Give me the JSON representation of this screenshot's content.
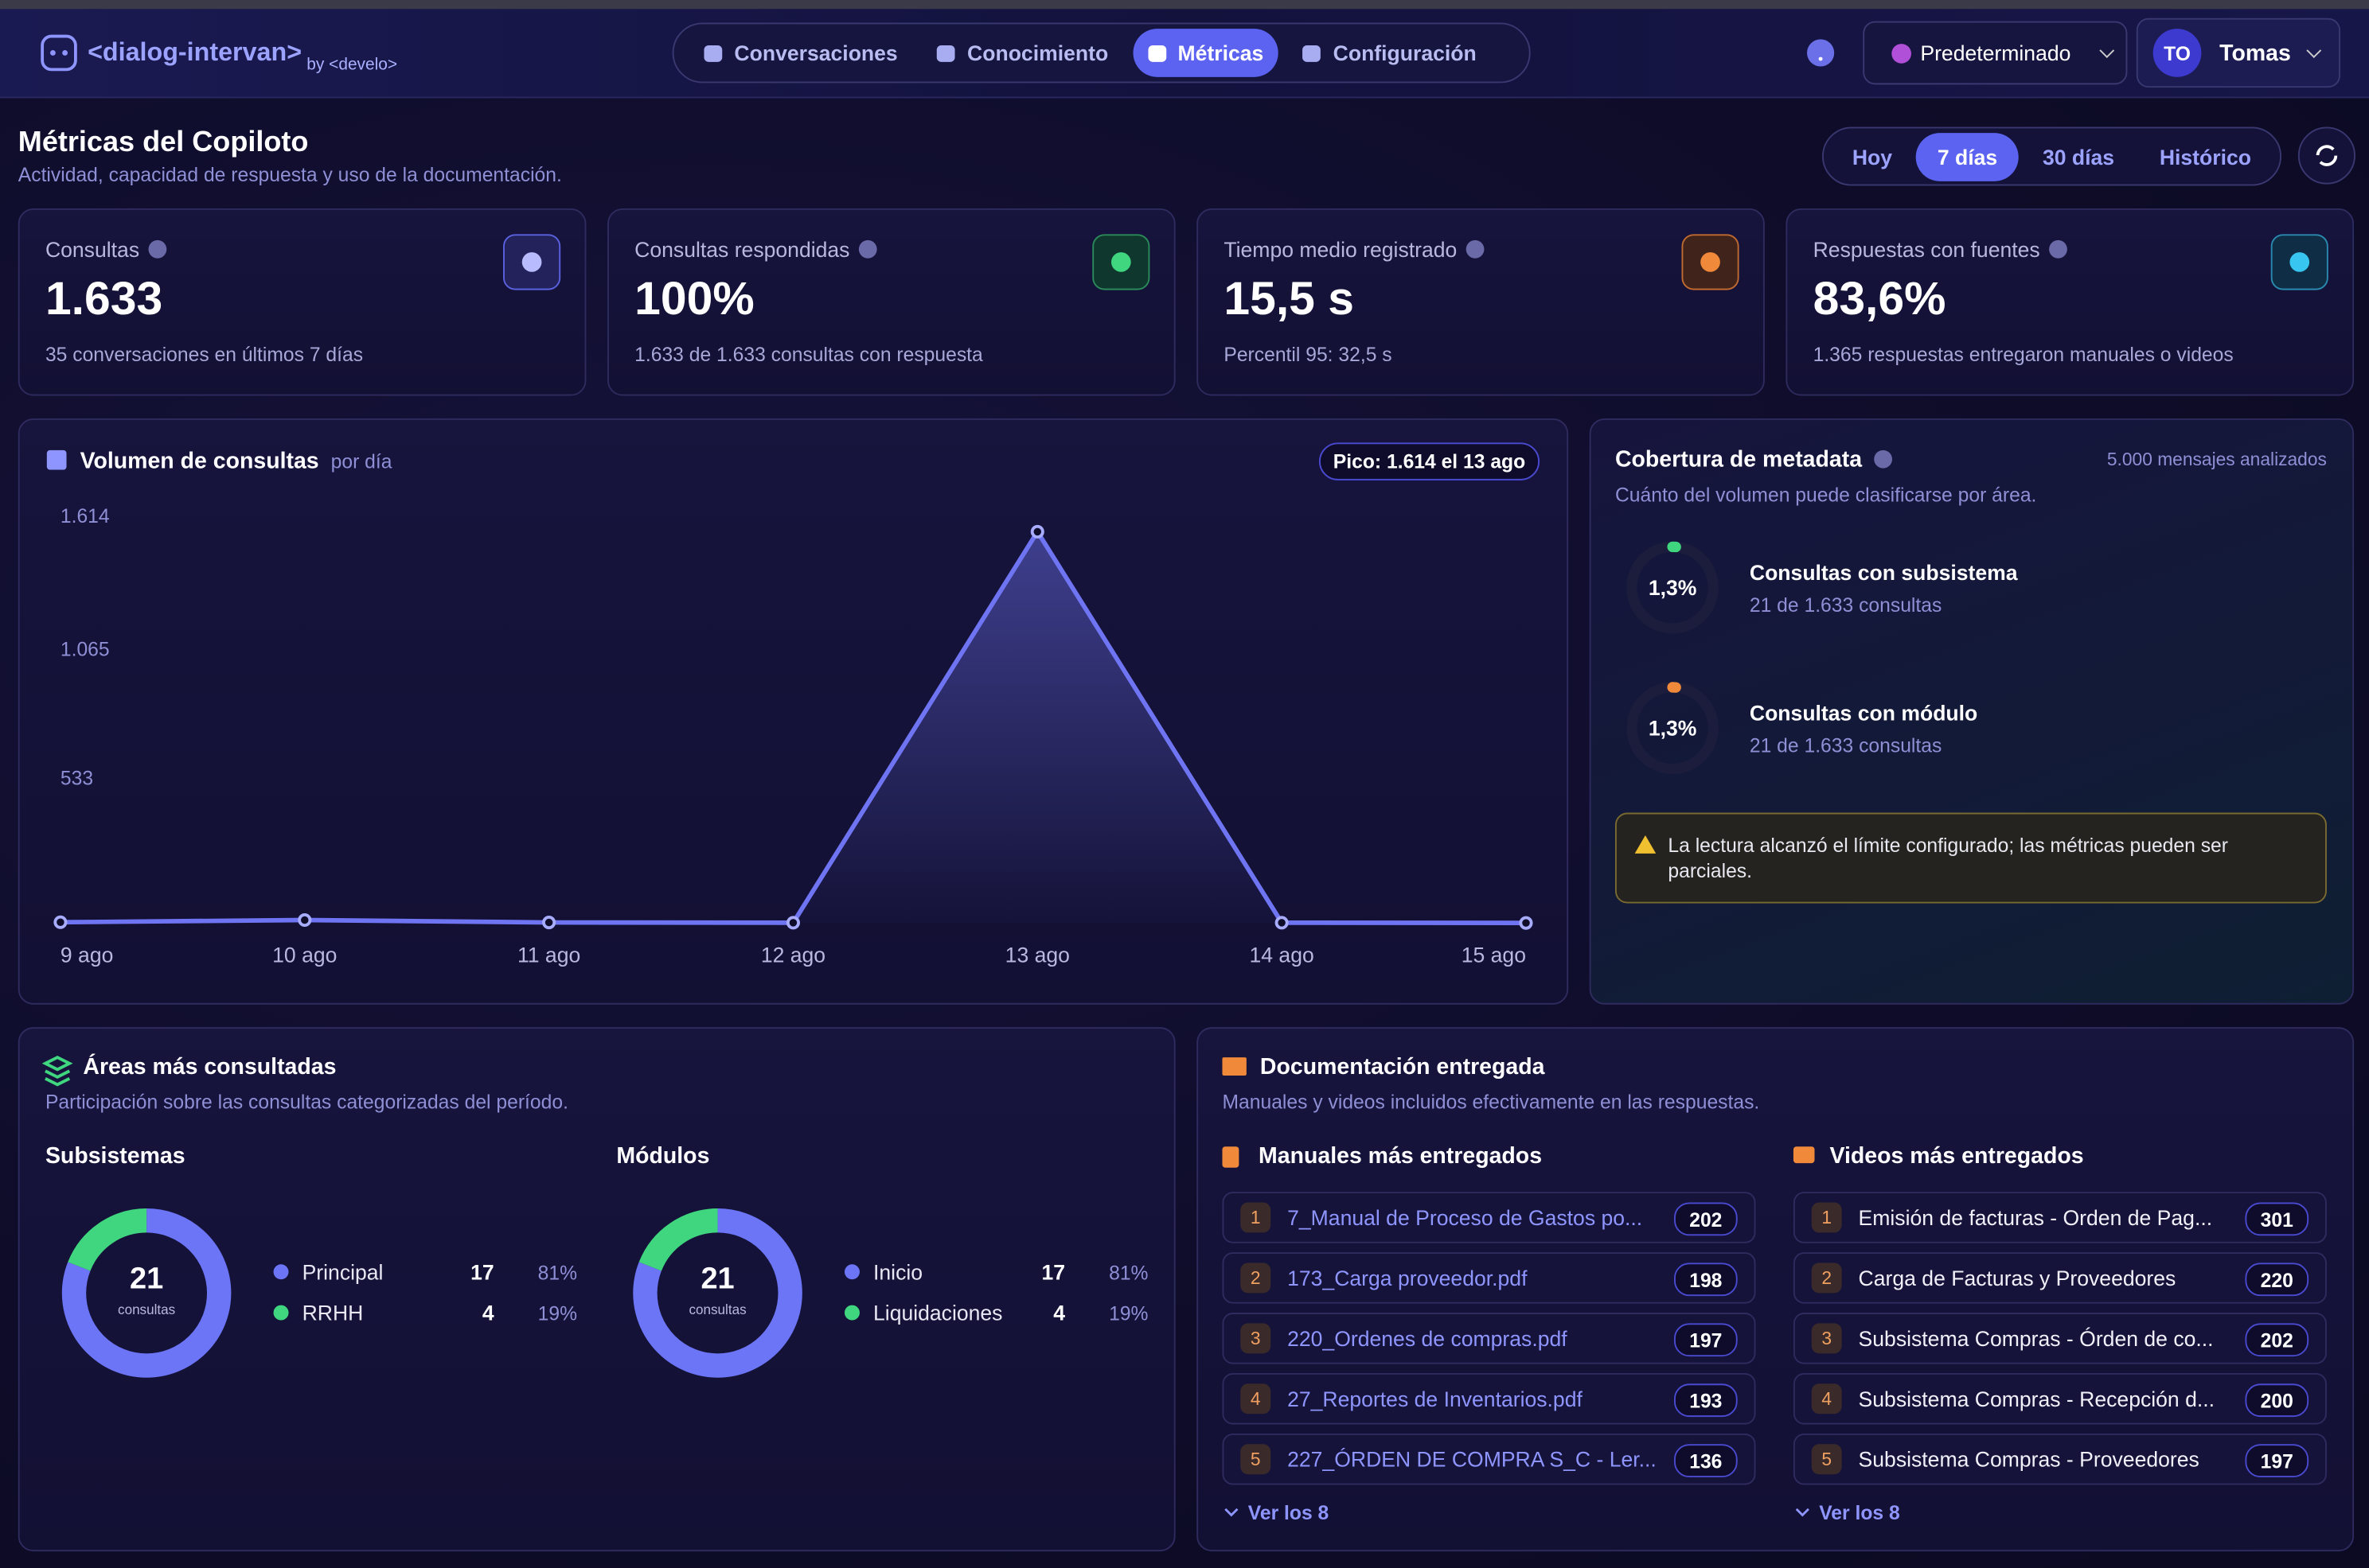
{
  "header": {
    "logo": "<dialog-intervan>",
    "by": "by <develo>",
    "nav": [
      "Conversaciones",
      "Conocimiento",
      "Métricas",
      "Configuración"
    ],
    "nav_active": 2,
    "profile": "Predeterminado",
    "user_initials": "TO",
    "user": "Tomas"
  },
  "page": {
    "title": "Métricas del Copiloto",
    "subtitle": "Actividad, capacidad de respuesta y uso de la documentación.",
    "ranges": [
      "Hoy",
      "7 días",
      "30 días",
      "Histórico"
    ],
    "range_active": 1
  },
  "kpis": [
    {
      "label": "Consultas",
      "value": "1.633",
      "note": "35 conversaciones en últimos 7 días"
    },
    {
      "label": "Consultas respondidas",
      "value": "100%",
      "note": "1.633 de 1.633 consultas con respuesta"
    },
    {
      "label": "Tiempo medio registrado",
      "value": "15,5 s",
      "note": "Percentil 95: 32,5 s"
    },
    {
      "label": "Respuestas con fuentes",
      "value": "83,6%",
      "note": "1.365 respuestas entregaron manuales o videos"
    }
  ],
  "chart_data": {
    "type": "line",
    "title": "Volumen de consultas",
    "subtitle": "por día",
    "badge": "Pico: 1.614 el 13 ago",
    "categories": [
      "9 ago",
      "10 ago",
      "11 ago",
      "12 ago",
      "13 ago",
      "14 ago",
      "15 ago"
    ],
    "values": [
      3,
      12,
      2,
      1,
      1614,
      1,
      0
    ],
    "color": "#6f74f2",
    "ylim": [
      0,
      1614
    ],
    "yticks": [
      {
        "value": 533,
        "label": "533"
      },
      {
        "value": 1065,
        "label": "1.065"
      },
      {
        "value": 1614,
        "label": "1.614"
      }
    ]
  },
  "coverage": {
    "title": "Cobertura de metadata",
    "count_note": "5.000 mensajes analizados",
    "subtitle": "Cuánto del volumen puede clasificarse por área.",
    "items": [
      {
        "pct": 1.3,
        "pct_label": "1,3%",
        "title": "Consultas con subsistema",
        "note": "21 de 1.633 consultas",
        "color": "#3fd67f"
      },
      {
        "pct": 1.3,
        "pct_label": "1,3%",
        "title": "Consultas con módulo",
        "note": "21 de 1.633 consultas",
        "color": "#f08a3a"
      }
    ],
    "warning": "La lectura alcanzó el límite configurado; las métricas pueden ser parciales."
  },
  "areas": {
    "title": "Áreas más consultadas",
    "subtitle": "Participación sobre las consultas categorizadas del período.",
    "groups": [
      {
        "title": "Subsistemas",
        "total": 21,
        "total_label": "consultas",
        "items": [
          {
            "name": "Principal",
            "count": 17,
            "share": "81%",
            "color": "#6b75f5"
          },
          {
            "name": "RRHH",
            "count": 4,
            "share": "19%",
            "color": "#3fd67f"
          }
        ]
      },
      {
        "title": "Módulos",
        "total": 21,
        "total_label": "consultas",
        "items": [
          {
            "name": "Inicio",
            "count": 17,
            "share": "81%",
            "color": "#6b75f5"
          },
          {
            "name": "Liquidaciones",
            "count": 4,
            "share": "19%",
            "color": "#3fd67f"
          }
        ]
      }
    ]
  },
  "docs": {
    "title": "Documentación entregada",
    "subtitle": "Manuales y videos incluidos efectivamente en las respuestas.",
    "lists": [
      {
        "title": "Manuales más entregados",
        "more": "Ver los 8",
        "items": [
          {
            "rank": 1,
            "name": "7_Manual de Proceso de Gastos po...",
            "count": 202
          },
          {
            "rank": 2,
            "name": "173_Carga proveedor.pdf",
            "count": 198
          },
          {
            "rank": 3,
            "name": "220_Ordenes de compras.pdf",
            "count": 197
          },
          {
            "rank": 4,
            "name": "27_Reportes de Inventarios.pdf",
            "count": 193
          },
          {
            "rank": 5,
            "name": "227_ÓRDEN DE COMPRA S_C - Ler...",
            "count": 136
          }
        ]
      },
      {
        "title": "Videos más entregados",
        "more": "Ver los 8",
        "items": [
          {
            "rank": 1,
            "name": "Emisión de facturas - Orden de Pag...",
            "count": 301
          },
          {
            "rank": 2,
            "name": "Carga de Facturas y Proveedores",
            "count": 220
          },
          {
            "rank": 3,
            "name": "Subsistema Compras - Órden de co...",
            "count": 202
          },
          {
            "rank": 4,
            "name": "Subsistema Compras - Recepción d...",
            "count": 200
          },
          {
            "rank": 5,
            "name": "Subsistema Compras - Proveedores",
            "count": 197
          }
        ]
      }
    ]
  }
}
